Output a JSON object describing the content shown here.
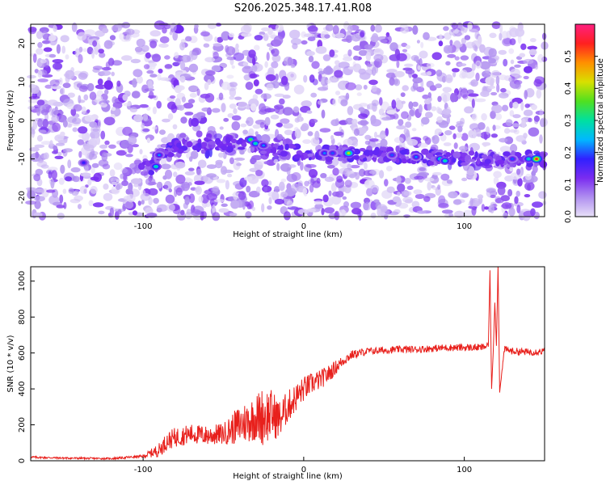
{
  "title": "S206.2025.348.17.41.R08",
  "colors": {
    "snr_line": "#e8201c",
    "axis": "#000000",
    "background": "#ffffff"
  },
  "chart_data": [
    {
      "type": "heatmap",
      "xlabel": "Height of straight line (km)",
      "ylabel": "Frequency (Hz)",
      "xlim": [
        -170,
        150
      ],
      "ylim": [
        -25,
        25
      ],
      "xticks": [
        -100,
        0,
        100
      ],
      "yticks": [
        -20,
        -10,
        0,
        10,
        20
      ],
      "colorbar": {
        "label": "Normalized spectral amplitude",
        "range": [
          0.0,
          0.6
        ],
        "ticks": [
          0.0,
          0.1,
          0.2,
          0.3,
          0.4,
          0.5
        ],
        "colormap": [
          "#e8e0f8",
          "#b090f0",
          "#7a2cf0",
          "#3020ff",
          "#00b8ff",
          "#00e0a0",
          "#50e020",
          "#d8e000",
          "#ff9000",
          "#ff2020",
          "#ff2080"
        ]
      },
      "signal_band": {
        "description_freq_hz": [
          [
            -150,
            -11
          ],
          [
            -95,
            -12
          ],
          [
            -90,
            -8
          ],
          [
            -80,
            -7
          ],
          [
            -60,
            -6.5
          ],
          [
            -35,
            -5.5
          ],
          [
            -20,
            -8
          ],
          [
            0,
            -8.5
          ],
          [
            30,
            -8.5
          ],
          [
            60,
            -9
          ],
          [
            90,
            -10
          ],
          [
            120,
            -10
          ],
          [
            145,
            -10
          ]
        ],
        "hotspots": [
          {
            "x": -92,
            "y": -12,
            "amp": 0.3
          },
          {
            "x": -90,
            "y": -9,
            "amp": 0.22
          },
          {
            "x": -33,
            "y": -5,
            "amp": 0.35
          },
          {
            "x": -30,
            "y": -6,
            "amp": 0.3
          },
          {
            "x": -25,
            "y": -6.5,
            "amp": 0.22
          },
          {
            "x": 13,
            "y": -8.5,
            "amp": 0.22
          },
          {
            "x": 18,
            "y": -8.5,
            "amp": 0.2
          },
          {
            "x": 28,
            "y": -8.5,
            "amp": 0.42
          },
          {
            "x": 55,
            "y": -9,
            "amp": 0.2
          },
          {
            "x": 70,
            "y": -9.5,
            "amp": 0.22
          },
          {
            "x": 85,
            "y": -10,
            "amp": 0.3
          },
          {
            "x": 88,
            "y": -10.5,
            "amp": 0.3
          },
          {
            "x": 130,
            "y": -10,
            "amp": 0.2
          },
          {
            "x": 140,
            "y": -10,
            "amp": 0.28
          },
          {
            "x": 145,
            "y": -10,
            "amp": 0.55
          },
          {
            "x": -137,
            "y": -11,
            "amp": 0.18
          }
        ]
      }
    },
    {
      "type": "line",
      "xlabel": "Height of straight line (km)",
      "ylabel": "SNR (10 * v/v)",
      "xlim": [
        -170,
        150
      ],
      "ylim": [
        0,
        1080
      ],
      "xticks": [
        -100,
        0,
        100
      ],
      "yticks": [
        0,
        200,
        400,
        600,
        800,
        1000
      ],
      "series": [
        {
          "name": "SNR",
          "x": [
            -170,
            -150,
            -120,
            -100,
            -90,
            -85,
            -80,
            -70,
            -60,
            -50,
            -40,
            -30,
            -25,
            -20,
            -15,
            -10,
            -5,
            0,
            5,
            10,
            15,
            20,
            25,
            30,
            40,
            50,
            60,
            70,
            80,
            90,
            100,
            110,
            115,
            116,
            117,
            118,
            119,
            120,
            121,
            122,
            125,
            130,
            140,
            150
          ],
          "values": [
            20,
            15,
            12,
            25,
            60,
            110,
            130,
            150,
            140,
            150,
            200,
            240,
            250,
            260,
            230,
            300,
            350,
            400,
            430,
            450,
            480,
            520,
            560,
            590,
            610,
            615,
            620,
            620,
            625,
            630,
            630,
            630,
            640,
            1060,
            400,
            600,
            880,
            640,
            1090,
            380,
            620,
            610,
            605,
            610
          ],
          "noise_amplitude": [
            6,
            5,
            5,
            8,
            40,
            50,
            55,
            55,
            55,
            60,
            110,
            130,
            170,
            140,
            110,
            90,
            80,
            70,
            60,
            55,
            50,
            40,
            30,
            25,
            20,
            20,
            20,
            20,
            20,
            20,
            20,
            20,
            20,
            0,
            0,
            0,
            0,
            0,
            0,
            0,
            20,
            20,
            20,
            20
          ]
        }
      ]
    }
  ]
}
